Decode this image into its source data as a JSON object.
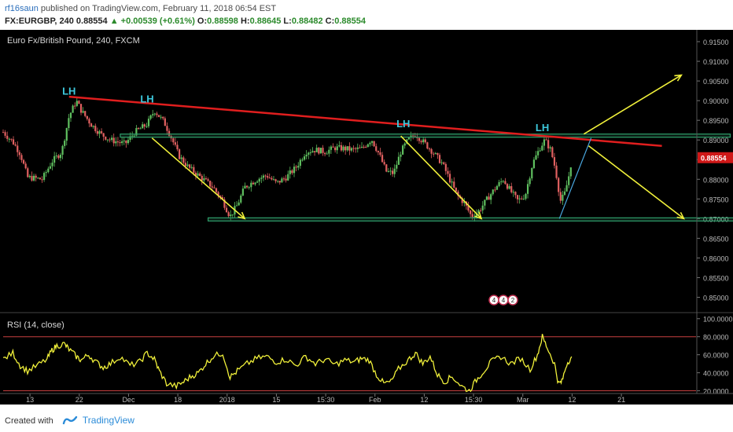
{
  "header": {
    "author": "rf16saun",
    "published_text": "published on TradingView.com, February 11, 2018 06:54 EST",
    "symbol": "FX:EURGBP, 240",
    "last": "0.88554",
    "change": "+0.00539 (+0.61%)",
    "open_label": "O:",
    "open": "0.88598",
    "high_label": "H:",
    "high": "0.88645",
    "low_label": "L:",
    "low": "0.88482",
    "close_label": "C:",
    "close": "0.88554"
  },
  "main_title": "Euro Fx/British Pound, 240, FXCM",
  "rsi_title": "RSI (14, close)",
  "price_badge": "0.88554",
  "footer": {
    "created_with": "Created with",
    "brand": "TradingView"
  },
  "colors": {
    "background": "#000000",
    "resistance": "#e01e1e",
    "zones": "#2e9e6a",
    "arrows": "#f0f03a",
    "labels": "#3dc8dc",
    "rsi_line": "#f0f03a",
    "rsi_levels": "#c84040",
    "badge": "#d01818"
  },
  "chart_data": [
    {
      "type": "candlestick",
      "title": "Euro Fx/British Pound, 240, FXCM",
      "ylim": [
        0.8465,
        0.918
      ],
      "y_ticks": [
        "0.91500",
        "0.91000",
        "0.90500",
        "0.90000",
        "0.89500",
        "0.89000",
        "0.88500",
        "0.88000",
        "0.87500",
        "0.87000",
        "0.86500",
        "0.86000",
        "0.85500",
        "0.85000"
      ],
      "x_ticks": [
        "13",
        "22",
        "Dec",
        "18",
        "2018",
        "15",
        "15:30",
        "Feb",
        "12",
        "15:30",
        "Mar",
        "12",
        "21"
      ],
      "x_categories_index_range": [
        0,
        12
      ],
      "close_path": [
        [
          0.0,
          0.892
        ],
        [
          0.2,
          0.8895
        ],
        [
          0.35,
          0.8865
        ],
        [
          0.5,
          0.8805
        ],
        [
          0.8,
          0.88
        ],
        [
          1.0,
          0.8845
        ],
        [
          1.2,
          0.887
        ],
        [
          1.35,
          0.896
        ],
        [
          1.5,
          0.9
        ],
        [
          1.6,
          0.8975
        ],
        [
          1.8,
          0.894
        ],
        [
          2.0,
          0.8915
        ],
        [
          2.2,
          0.89
        ],
        [
          2.5,
          0.889
        ],
        [
          2.7,
          0.892
        ],
        [
          2.95,
          0.894
        ],
        [
          3.1,
          0.8975
        ],
        [
          3.3,
          0.8945
        ],
        [
          3.45,
          0.8905
        ],
        [
          3.6,
          0.886
        ],
        [
          3.8,
          0.883
        ],
        [
          4.0,
          0.881
        ],
        [
          4.15,
          0.8795
        ],
        [
          4.3,
          0.878
        ],
        [
          4.5,
          0.8745
        ],
        [
          4.65,
          0.8705
        ],
        [
          4.8,
          0.8735
        ],
        [
          4.95,
          0.878
        ],
        [
          5.2,
          0.88
        ],
        [
          5.4,
          0.881
        ],
        [
          5.6,
          0.879
        ],
        [
          5.8,
          0.8805
        ],
        [
          6.0,
          0.883
        ],
        [
          6.2,
          0.887
        ],
        [
          6.4,
          0.8875
        ],
        [
          6.6,
          0.887
        ],
        [
          6.8,
          0.888
        ],
        [
          7.0,
          0.8878
        ],
        [
          7.15,
          0.8875
        ],
        [
          7.35,
          0.8878
        ],
        [
          7.55,
          0.8902
        ],
        [
          7.7,
          0.8865
        ],
        [
          7.85,
          0.882
        ],
        [
          8.0,
          0.8815
        ],
        [
          8.15,
          0.887
        ],
        [
          8.3,
          0.89
        ],
        [
          8.45,
          0.8915
        ],
        [
          8.65,
          0.889
        ],
        [
          8.8,
          0.887
        ],
        [
          9.0,
          0.884
        ],
        [
          9.15,
          0.88
        ],
        [
          9.3,
          0.876
        ],
        [
          9.45,
          0.874
        ],
        [
          9.6,
          0.8705
        ],
        [
          9.75,
          0.872
        ],
        [
          9.95,
          0.8755
        ],
        [
          10.1,
          0.878
        ],
        [
          10.25,
          0.88
        ],
        [
          10.4,
          0.877
        ],
        [
          10.55,
          0.8745
        ],
        [
          10.7,
          0.876
        ],
        [
          10.85,
          0.884
        ],
        [
          11.0,
          0.888
        ],
        [
          11.1,
          0.89
        ],
        [
          11.22,
          0.8875
        ],
        [
          11.32,
          0.8825
        ],
        [
          11.42,
          0.8745
        ],
        [
          11.5,
          0.876
        ],
        [
          11.58,
          0.88
        ],
        [
          11.66,
          0.8855
        ]
      ],
      "annotations": {
        "labels": [
          {
            "text": "LH",
            "x": 1.35,
            "y": 0.9015
          },
          {
            "text": "LH",
            "x": 2.95,
            "y": 0.8995
          },
          {
            "text": "LH",
            "x": 8.2,
            "y": 0.8932
          },
          {
            "text": "LH",
            "x": 11.05,
            "y": 0.8922
          }
        ],
        "resistance_line": [
          [
            1.35,
            0.901
          ],
          [
            13.5,
            0.8885
          ]
        ],
        "zones": [
          {
            "x": [
              2.4,
              14.9
            ],
            "y": [
              0.8907,
              0.8915
            ]
          },
          {
            "x": [
              4.2,
              15.95
            ],
            "y": [
              0.8694,
              0.8702
            ]
          }
        ],
        "arrows": [
          [
            [
              3.05,
              0.8905
            ],
            [
              4.95,
              0.87
            ]
          ],
          [
            [
              8.15,
              0.891
            ],
            [
              9.8,
              0.87
            ]
          ],
          [
            [
              11.9,
              0.8915
            ],
            [
              13.9,
              0.9065
            ]
          ],
          [
            [
              12.0,
              0.8885
            ],
            [
              13.95,
              0.87
            ]
          ]
        ],
        "projection_line": [
          [
            11.4,
            0.87
          ],
          [
            12.05,
            0.8905
          ]
        ],
        "event_badges": [
          "4",
          "4",
          "2"
        ]
      }
    },
    {
      "type": "line",
      "title": "RSI (14, close)",
      "ylim": [
        17,
        105
      ],
      "y_ticks": [
        "100.0000",
        "80.0000",
        "60.0000",
        "40.0000",
        "20.0000"
      ],
      "levels": [
        80,
        20
      ],
      "series": [
        {
          "values": [
            [
              0.0,
              55
            ],
            [
              0.2,
              62
            ],
            [
              0.35,
              48
            ],
            [
              0.5,
              42
            ],
            [
              0.7,
              48
            ],
            [
              0.9,
              55
            ],
            [
              1.0,
              65
            ],
            [
              1.1,
              70
            ],
            [
              1.25,
              72
            ],
            [
              1.35,
              66
            ],
            [
              1.5,
              58
            ],
            [
              1.6,
              54
            ],
            [
              1.75,
              60
            ],
            [
              1.9,
              52
            ],
            [
              2.05,
              46
            ],
            [
              2.2,
              50
            ],
            [
              2.4,
              58
            ],
            [
              2.6,
              48
            ],
            [
              2.8,
              52
            ],
            [
              2.95,
              62
            ],
            [
              3.1,
              55
            ],
            [
              3.2,
              42
            ],
            [
              3.35,
              28
            ],
            [
              3.55,
              25
            ],
            [
              3.7,
              30
            ],
            [
              3.85,
              36
            ],
            [
              4.0,
              40
            ],
            [
              4.15,
              50
            ],
            [
              4.3,
              58
            ],
            [
              4.5,
              62
            ],
            [
              4.65,
              35
            ],
            [
              4.8,
              42
            ],
            [
              5.0,
              50
            ],
            [
              5.2,
              56
            ],
            [
              5.4,
              58
            ],
            [
              5.6,
              52
            ],
            [
              5.8,
              55
            ],
            [
              6.0,
              48
            ],
            [
              6.2,
              58
            ],
            [
              6.4,
              50
            ],
            [
              6.6,
              55
            ],
            [
              6.8,
              49
            ],
            [
              7.0,
              54
            ],
            [
              7.2,
              52
            ],
            [
              7.35,
              56
            ],
            [
              7.5,
              54
            ],
            [
              7.65,
              38
            ],
            [
              7.8,
              28
            ],
            [
              7.95,
              30
            ],
            [
              8.1,
              44
            ],
            [
              8.3,
              54
            ],
            [
              8.45,
              62
            ],
            [
              8.6,
              50
            ],
            [
              8.75,
              58
            ],
            [
              8.9,
              38
            ],
            [
              9.05,
              30
            ],
            [
              9.2,
              36
            ],
            [
              9.4,
              25
            ],
            [
              9.55,
              20
            ],
            [
              9.7,
              32
            ],
            [
              9.85,
              42
            ],
            [
              10.0,
              52
            ],
            [
              10.2,
              58
            ],
            [
              10.4,
              50
            ],
            [
              10.6,
              56
            ],
            [
              10.8,
              44
            ],
            [
              10.95,
              60
            ],
            [
              11.05,
              80
            ],
            [
              11.15,
              68
            ],
            [
              11.3,
              50
            ],
            [
              11.38,
              28
            ],
            [
              11.45,
              30
            ],
            [
              11.55,
              50
            ],
            [
              11.65,
              58
            ]
          ]
        }
      ]
    }
  ]
}
